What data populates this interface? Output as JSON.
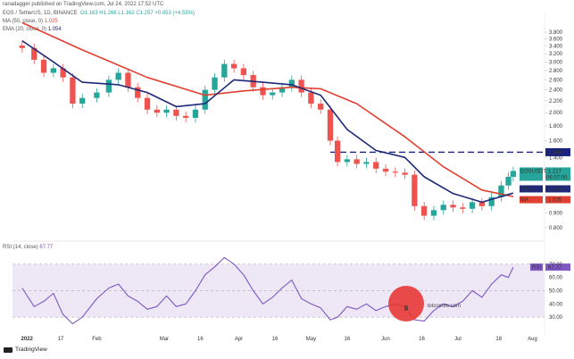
{
  "header": {
    "publisher": "ranadagger published on TradingView.com, Jul 24, 2022 17:52 UTC",
    "symbol": "EOS / TetherUS, 1D, BINANCE",
    "ohlc": "O1.163 H1.266 L1.162 C1.257 +0.053 (+4.55%)",
    "ma_label": "MA (50, close, 0)",
    "ma_value": "1.025",
    "ema_label": "EMA (20, close, 0)",
    "ema_value": "1.054",
    "rsi_label": "RSI (14, close)",
    "rsi_value": "67.77"
  },
  "footer": {
    "brand": "TradingView"
  },
  "watermark": "bitcoin86.com",
  "colors": {
    "up": "#26a69a",
    "down": "#ef5350",
    "ema": "#1e2a78",
    "ma": "#e04030",
    "rsi": "#7e57c2",
    "rsi_band": "#ede7f6",
    "resistance": "#1a237e"
  },
  "chart_data": [
    {
      "type": "candlestick",
      "title": "EOS / TetherUS, 1D, BINANCE",
      "y_scale": "log",
      "ylim": [
        0.75,
        4.2
      ],
      "y_ticks": [
        "3.800",
        "3.600",
        "3.400",
        "3.200",
        "3.000",
        "2.800",
        "2.600",
        "2.400",
        "2.200",
        "2.000",
        "1.800",
        "1.600",
        "1.400",
        "1.200",
        "1.000",
        "0.900",
        "0.800"
      ],
      "x_ticks": [
        "2022",
        "17",
        "Feb",
        "Mar",
        "16",
        "Apr",
        "16",
        "May",
        "16",
        "Jun",
        "16",
        "Jul",
        "18",
        "Aug"
      ],
      "resistance_level": 1.46,
      "resistance_label": "1.460",
      "price_tags": [
        {
          "label": "EOSUSDT",
          "value": "1.217",
          "sub": "06:07:00"
        },
        {
          "label": "EMA",
          "value": "1.054"
        },
        {
          "label": "MA",
          "value": "1.025"
        }
      ],
      "close_series": [
        {
          "date": "2022-01-01",
          "close": 3.35
        },
        {
          "date": "2022-01-06",
          "close": 3.05
        },
        {
          "date": "2022-01-10",
          "close": 2.75
        },
        {
          "date": "2022-01-14",
          "close": 2.85
        },
        {
          "date": "2022-01-18",
          "close": 2.65
        },
        {
          "date": "2022-01-22",
          "close": 2.15
        },
        {
          "date": "2022-01-26",
          "close": 2.25
        },
        {
          "date": "2022-02-01",
          "close": 2.35
        },
        {
          "date": "2022-02-06",
          "close": 2.6
        },
        {
          "date": "2022-02-10",
          "close": 2.75
        },
        {
          "date": "2022-02-14",
          "close": 2.45
        },
        {
          "date": "2022-02-18",
          "close": 2.25
        },
        {
          "date": "2022-02-22",
          "close": 2.05
        },
        {
          "date": "2022-02-26",
          "close": 2.0
        },
        {
          "date": "2022-03-02",
          "close": 2.05
        },
        {
          "date": "2022-03-06",
          "close": 1.95
        },
        {
          "date": "2022-03-10",
          "close": 1.92
        },
        {
          "date": "2022-03-14",
          "close": 2.05
        },
        {
          "date": "2022-03-18",
          "close": 2.4
        },
        {
          "date": "2022-03-22",
          "close": 2.65
        },
        {
          "date": "2022-03-26",
          "close": 2.95
        },
        {
          "date": "2022-03-30",
          "close": 2.85
        },
        {
          "date": "2022-04-03",
          "close": 2.7
        },
        {
          "date": "2022-04-07",
          "close": 2.45
        },
        {
          "date": "2022-04-11",
          "close": 2.3
        },
        {
          "date": "2022-04-15",
          "close": 2.35
        },
        {
          "date": "2022-04-19",
          "close": 2.45
        },
        {
          "date": "2022-04-23",
          "close": 2.6
        },
        {
          "date": "2022-04-27",
          "close": 2.35
        },
        {
          "date": "2022-05-01",
          "close": 2.15
        },
        {
          "date": "2022-05-05",
          "close": 2.05
        },
        {
          "date": "2022-05-09",
          "close": 1.6
        },
        {
          "date": "2022-05-12",
          "close": 1.35
        },
        {
          "date": "2022-05-16",
          "close": 1.38
        },
        {
          "date": "2022-05-20",
          "close": 1.33
        },
        {
          "date": "2022-05-24",
          "close": 1.35
        },
        {
          "date": "2022-05-28",
          "close": 1.28
        },
        {
          "date": "2022-06-01",
          "close": 1.25
        },
        {
          "date": "2022-06-05",
          "close": 1.24
        },
        {
          "date": "2022-06-09",
          "close": 1.22
        },
        {
          "date": "2022-06-13",
          "close": 0.95
        },
        {
          "date": "2022-06-17",
          "close": 0.88
        },
        {
          "date": "2022-06-21",
          "close": 0.92
        },
        {
          "date": "2022-06-25",
          "close": 0.96
        },
        {
          "date": "2022-06-29",
          "close": 0.94
        },
        {
          "date": "2022-07-03",
          "close": 0.93
        },
        {
          "date": "2022-07-07",
          "close": 0.98
        },
        {
          "date": "2022-07-11",
          "close": 0.95
        },
        {
          "date": "2022-07-15",
          "close": 1.02
        },
        {
          "date": "2022-07-19",
          "close": 1.12
        },
        {
          "date": "2022-07-22",
          "close": 1.2
        },
        {
          "date": "2022-07-24",
          "close": 1.257
        }
      ],
      "ema20_series": [
        {
          "date": "2022-01-01",
          "value": 3.55
        },
        {
          "date": "2022-01-14",
          "value": 3.0
        },
        {
          "date": "2022-01-26",
          "value": 2.55
        },
        {
          "date": "2022-02-10",
          "value": 2.5
        },
        {
          "date": "2022-02-22",
          "value": 2.35
        },
        {
          "date": "2022-03-06",
          "value": 2.1
        },
        {
          "date": "2022-03-18",
          "value": 2.15
        },
        {
          "date": "2022-03-30",
          "value": 2.6
        },
        {
          "date": "2022-04-11",
          "value": 2.55
        },
        {
          "date": "2022-04-23",
          "value": 2.5
        },
        {
          "date": "2022-05-05",
          "value": 2.3
        },
        {
          "date": "2022-05-16",
          "value": 1.75
        },
        {
          "date": "2022-05-28",
          "value": 1.48
        },
        {
          "date": "2022-06-09",
          "value": 1.4
        },
        {
          "date": "2022-06-17",
          "value": 1.2
        },
        {
          "date": "2022-06-29",
          "value": 1.05
        },
        {
          "date": "2022-07-11",
          "value": 0.98
        },
        {
          "date": "2022-07-24",
          "value": 1.054
        }
      ],
      "ma50_series": [
        {
          "date": "2022-01-01",
          "value": 4.1
        },
        {
          "date": "2022-01-26",
          "value": 3.3
        },
        {
          "date": "2022-02-22",
          "value": 2.65
        },
        {
          "date": "2022-03-18",
          "value": 2.3
        },
        {
          "date": "2022-04-03",
          "value": 2.38
        },
        {
          "date": "2022-04-23",
          "value": 2.45
        },
        {
          "date": "2022-05-05",
          "value": 2.42
        },
        {
          "date": "2022-05-20",
          "value": 2.15
        },
        {
          "date": "2022-06-09",
          "value": 1.65
        },
        {
          "date": "2022-06-25",
          "value": 1.3
        },
        {
          "date": "2022-07-11",
          "value": 1.08
        },
        {
          "date": "2022-07-24",
          "value": 1.025
        }
      ]
    },
    {
      "type": "line",
      "title": "RSI (14, close)",
      "ylim": [
        20,
        80
      ],
      "y_ticks": [
        "70.00",
        "60.00",
        "50.00",
        "40.00",
        "30.00"
      ],
      "band": [
        30,
        70
      ],
      "series": [
        {
          "name": "RSI",
          "values": [
            {
              "date": "2022-01-01",
              "value": 52
            },
            {
              "date": "2022-01-06",
              "value": 38
            },
            {
              "date": "2022-01-10",
              "value": 42
            },
            {
              "date": "2022-01-14",
              "value": 48
            },
            {
              "date": "2022-01-18",
              "value": 32
            },
            {
              "date": "2022-01-22",
              "value": 25
            },
            {
              "date": "2022-01-26",
              "value": 30
            },
            {
              "date": "2022-02-01",
              "value": 44
            },
            {
              "date": "2022-02-06",
              "value": 52
            },
            {
              "date": "2022-02-10",
              "value": 55
            },
            {
              "date": "2022-02-14",
              "value": 46
            },
            {
              "date": "2022-02-18",
              "value": 42
            },
            {
              "date": "2022-02-22",
              "value": 36
            },
            {
              "date": "2022-02-26",
              "value": 38
            },
            {
              "date": "2022-03-02",
              "value": 46
            },
            {
              "date": "2022-03-06",
              "value": 38
            },
            {
              "date": "2022-03-10",
              "value": 40
            },
            {
              "date": "2022-03-14",
              "value": 50
            },
            {
              "date": "2022-03-18",
              "value": 62
            },
            {
              "date": "2022-03-22",
              "value": 68
            },
            {
              "date": "2022-03-26",
              "value": 75
            },
            {
              "date": "2022-03-30",
              "value": 70
            },
            {
              "date": "2022-04-03",
              "value": 62
            },
            {
              "date": "2022-04-07",
              "value": 50
            },
            {
              "date": "2022-04-11",
              "value": 40
            },
            {
              "date": "2022-04-15",
              "value": 45
            },
            {
              "date": "2022-04-19",
              "value": 52
            },
            {
              "date": "2022-04-23",
              "value": 58
            },
            {
              "date": "2022-04-27",
              "value": 44
            },
            {
              "date": "2022-05-01",
              "value": 40
            },
            {
              "date": "2022-05-05",
              "value": 37
            },
            {
              "date": "2022-05-09",
              "value": 28
            },
            {
              "date": "2022-05-12",
              "value": 30
            },
            {
              "date": "2022-05-16",
              "value": 38
            },
            {
              "date": "2022-05-20",
              "value": 36
            },
            {
              "date": "2022-05-24",
              "value": 40
            },
            {
              "date": "2022-05-28",
              "value": 35
            },
            {
              "date": "2022-06-01",
              "value": 38
            },
            {
              "date": "2022-06-05",
              "value": 40
            },
            {
              "date": "2022-06-09",
              "value": 38
            },
            {
              "date": "2022-06-13",
              "value": 28
            },
            {
              "date": "2022-06-17",
              "value": 27
            },
            {
              "date": "2022-06-21",
              "value": 35
            },
            {
              "date": "2022-06-25",
              "value": 40
            },
            {
              "date": "2022-06-29",
              "value": 38
            },
            {
              "date": "2022-07-03",
              "value": 42
            },
            {
              "date": "2022-07-07",
              "value": 50
            },
            {
              "date": "2022-07-11",
              "value": 45
            },
            {
              "date": "2022-07-15",
              "value": 55
            },
            {
              "date": "2022-07-19",
              "value": 62
            },
            {
              "date": "2022-07-22",
              "value": 60
            },
            {
              "date": "2022-07-24",
              "value": 67.77
            }
          ]
        }
      ]
    }
  ]
}
